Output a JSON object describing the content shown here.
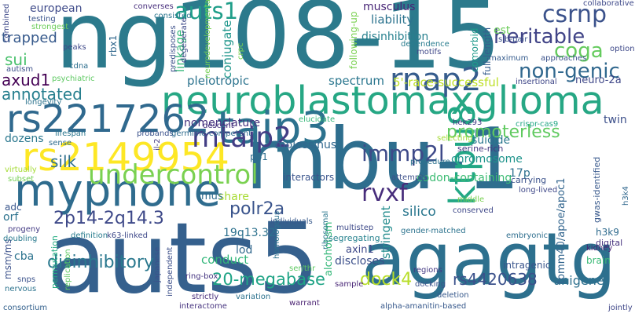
{
  "words": [
    {
      "text": "ng108-15",
      "color": "#2c7a8c",
      "weight": 140
    },
    {
      "text": "mbu-1",
      "color": "#2e6e8e",
      "weight": 130
    },
    {
      "text": "auts5",
      "color": "#35608d",
      "weight": 120
    },
    {
      "text": "agagtg",
      "color": "#2d708e",
      "weight": 110
    },
    {
      "text": "neuroblastomaxglioma",
      "color": "#26a784",
      "weight": 60
    },
    {
      "text": "rs2217262",
      "color": "#30698e",
      "weight": 58
    },
    {
      "text": "rs2149954",
      "color": "#fde725",
      "weight": 56
    },
    {
      "text": "myphone",
      "color": "#2f6c8e",
      "weight": 56
    },
    {
      "text": "taip3",
      "color": "#2c728e",
      "weight": 55
    },
    {
      "text": "ktpu8",
      "color": "#22a785",
      "weight": 50
    },
    {
      "text": "undercontrol",
      "color": "#7ad151",
      "weight": 40
    },
    {
      "text": "mtaip2",
      "color": "#433e85",
      "weight": 38
    },
    {
      "text": "rnap2",
      "color": "#365c8d",
      "weight": 40
    },
    {
      "text": "csrnp",
      "color": "#3b528b",
      "weight": 33
    },
    {
      "text": "auts1",
      "color": "#1f9e89",
      "weight": 30
    },
    {
      "text": "heritable",
      "color": "#414487",
      "weight": 28
    },
    {
      "text": "coga",
      "color": "#65cb5e",
      "weight": 28
    },
    {
      "text": "non-genic",
      "color": "#31688e",
      "weight": 28
    },
    {
      "text": "immp2l",
      "color": "#3e4a89",
      "weight": 30
    },
    {
      "text": "promoterless",
      "color": "#60ca60",
      "weight": 22
    },
    {
      "text": "rvxf",
      "color": "#472d7b",
      "weight": 30
    },
    {
      "text": "2p14-2q14.3",
      "color": "#3e4989",
      "weight": 24
    },
    {
      "text": "disinhibitory",
      "color": "#2a788e",
      "weight": 24
    },
    {
      "text": "20-megabase",
      "color": "#20a486",
      "weight": 22
    },
    {
      "text": "dock4",
      "color": "#b8de29",
      "weight": 22
    },
    {
      "text": "rs4420638",
      "color": "#3b518b",
      "weight": 20
    },
    {
      "text": "polr2a",
      "color": "#3a548c",
      "weight": 20
    },
    {
      "text": "silk",
      "color": "#2e6f8e",
      "weight": 22
    },
    {
      "text": "axud1",
      "color": "#440154",
      "weight": 20
    },
    {
      "text": "annotated",
      "color": "#277f8e",
      "weight": 20
    },
    {
      "text": "sui",
      "color": "#4ac16d",
      "weight": 20
    },
    {
      "text": "trapped",
      "color": "#375a8c",
      "weight": 18
    },
    {
      "text": "european",
      "color": "#3e4a89",
      "weight": 16
    },
    {
      "text": "musculus",
      "color": "#482677",
      "weight": 14
    },
    {
      "text": "liability",
      "color": "#2c738e",
      "weight": 16
    },
    {
      "text": "disinhibition",
      "color": "#27808e",
      "weight": 14
    },
    {
      "text": "conjugate",
      "color": "#1f968b",
      "weight": 16
    },
    {
      "text": "linkage",
      "color": "#35b779",
      "weight": 16
    },
    {
      "text": "pleiotropic",
      "color": "#2c738e",
      "weight": 16
    },
    {
      "text": "spectrum",
      "color": "#2a768e",
      "weight": 16
    },
    {
      "text": "5'-race-successful",
      "color": "#bddf26",
      "weight": 16
    },
    {
      "text": "neuro-2a",
      "color": "#3f4788",
      "weight": 14
    },
    {
      "text": "nomenclature",
      "color": "#46337f",
      "weight": 14
    },
    {
      "text": "twin",
      "color": "#3c4f8a",
      "weight": 14
    },
    {
      "text": "suicide",
      "color": "#2a788e",
      "weight": 14
    },
    {
      "text": "dozens",
      "color": "#2a778e",
      "weight": 14
    },
    {
      "text": "molossinus",
      "color": "#31688e",
      "weight": 14
    },
    {
      "text": "chromosome",
      "color": "#1f948c",
      "weight": 14
    },
    {
      "text": "serine-rich",
      "color": "#453781",
      "weight": 11
    },
    {
      "text": "codon-containing",
      "color": "#3dbc74",
      "weight": 14
    },
    {
      "text": "17p",
      "color": "#2d708e",
      "weight": 14
    },
    {
      "text": "long-lived",
      "color": "#3f4889",
      "weight": 10
    },
    {
      "text": "stringent",
      "color": "#228c8d",
      "weight": 16
    },
    {
      "text": "silico",
      "color": "#2a778e",
      "weight": 18
    },
    {
      "text": "share",
      "color": "#a8db34",
      "weight": 14
    },
    {
      "text": "mus",
      "color": "#2f6b8e",
      "weight": 14
    },
    {
      "text": "19q13.32",
      "color": "#2d718e",
      "weight": 14
    },
    {
      "text": "lod",
      "color": "#31688e",
      "weight": 14
    },
    {
      "text": "conduct",
      "color": "#32b67a",
      "weight": 16
    },
    {
      "text": "axin1",
      "color": "#3e4989",
      "weight": 14
    },
    {
      "text": "alcoholism",
      "color": "#35b779",
      "weight": 14
    },
    {
      "text": "discloses",
      "color": "#3c4f8a",
      "weight": 14
    },
    {
      "text": "unigene",
      "color": "#2d708e",
      "weight": 16
    },
    {
      "text": "tomm40/apoe/apoc1",
      "color": "#32658e",
      "weight": 14
    },
    {
      "text": "h3k9",
      "color": "#2f6b8e",
      "weight": 12
    },
    {
      "text": "kidney",
      "color": "#482173",
      "weight": 10
    },
    {
      "text": "brain",
      "color": "#3aba76",
      "weight": 12
    },
    {
      "text": "intragenic",
      "color": "#39558c",
      "weight": 12
    },
    {
      "text": "regions",
      "color": "#443983",
      "weight": 10
    },
    {
      "text": "gwas-identified",
      "color": "#38598c",
      "weight": 12
    },
    {
      "text": "digital",
      "color": "#46327e",
      "weight": 12
    },
    {
      "text": "embryonic",
      "color": "#2e6e8e",
      "weight": 10
    },
    {
      "text": "gender-matched",
      "color": "#2c738e",
      "weight": 10
    },
    {
      "text": "segregating",
      "color": "#26828e",
      "weight": 12
    },
    {
      "text": "multistep",
      "color": "#3e4a89",
      "weight": 10
    },
    {
      "text": "individuals",
      "color": "#38598c",
      "weight": 10
    },
    {
      "text": "ring-box",
      "color": "#453581",
      "weight": 10
    },
    {
      "text": "alpha-amanitin-based",
      "color": "#38598c",
      "weight": 10
    },
    {
      "text": "deletion",
      "color": "#37598c",
      "weight": 10
    },
    {
      "text": "sample",
      "color": "#482576",
      "weight": 10
    },
    {
      "text": "k63-linked",
      "color": "#3e4989",
      "weight": 10
    },
    {
      "text": "definition",
      "color": "#287c8e",
      "weight": 10
    },
    {
      "text": "interactome",
      "color": "#46337f",
      "weight": 10
    },
    {
      "text": "strictly",
      "color": "#472d7b",
      "weight": 10
    },
    {
      "text": "warrant",
      "color": "#481f70",
      "weight": 10
    },
    {
      "text": "variation",
      "color": "#2c728e",
      "weight": 10
    },
    {
      "text": "consortium",
      "color": "#34618d",
      "weight": 10
    },
    {
      "text": "nervous",
      "color": "#2c738e",
      "weight": 10
    },
    {
      "text": "snps",
      "color": "#3b528b",
      "weight": 10
    },
    {
      "text": "doubling",
      "color": "#297a8e",
      "weight": 10
    },
    {
      "text": "progeny",
      "color": "#443b84",
      "weight": 10
    },
    {
      "text": "msm/ms",
      "color": "#3b518b",
      "weight": 12
    },
    {
      "text": "cba",
      "color": "#2c738e",
      "weight": 14
    },
    {
      "text": "orf",
      "color": "#2c728e",
      "weight": 14
    },
    {
      "text": "adc",
      "color": "#39568c",
      "weight": 12
    },
    {
      "text": "permutation",
      "color": "#25ac82",
      "weight": 12
    },
    {
      "text": "replication",
      "color": "#5ec962",
      "weight": 10
    },
    {
      "text": "japanese",
      "color": "#3c508b",
      "weight": 10
    },
    {
      "text": "independent",
      "color": "#3c4f8a",
      "weight": 10
    },
    {
      "text": "lifespan",
      "color": "#2a768e",
      "weight": 10
    },
    {
      "text": "probands",
      "color": "#3b528b",
      "weight": 10
    },
    {
      "text": "germline-competent",
      "color": "#2f6c8e",
      "weight": 10
    },
    {
      "text": "descent",
      "color": "#46337f",
      "weight": 10
    },
    {
      "text": "interactors",
      "color": "#3a548c",
      "weight": 12
    },
    {
      "text": "homologous",
      "color": "#2c728e",
      "weight": 10
    },
    {
      "text": "ribosomal",
      "color": "#2a778e",
      "weight": 10
    },
    {
      "text": "middle",
      "color": "#7ad151",
      "weight": 10
    },
    {
      "text": "conserved",
      "color": "#3f4889",
      "weight": 10
    },
    {
      "text": "carrying",
      "color": "#3b528b",
      "weight": 12
    },
    {
      "text": "selecting",
      "color": "#a5db36",
      "weight": 10
    },
    {
      "text": "attempts",
      "color": "#3c4f8a",
      "weight": 10
    },
    {
      "text": "crispr-cas9",
      "color": "#21a685",
      "weight": 10
    },
    {
      "text": "hek293",
      "color": "#443a83",
      "weight": 10
    },
    {
      "text": "elucidate",
      "color": "#35b779",
      "weight": 10
    },
    {
      "text": "pp1",
      "color": "#2e6d8e",
      "weight": 12
    },
    {
      "text": "sense",
      "color": "#2f6c8e",
      "weight": 10
    },
    {
      "text": "rbx1",
      "color": "#31688e",
      "weight": 12
    },
    {
      "text": "predisposes",
      "color": "#3c4f8a",
      "weight": 10
    },
    {
      "text": "degenerate",
      "color": "#3e4989",
      "weight": 10
    },
    {
      "text": "neurodevelopmental",
      "color": "#75d054",
      "weight": 10
    },
    {
      "text": "comorbid",
      "color": "#1f9a8a",
      "weight": 12
    },
    {
      "text": "full-length",
      "color": "#365d8d",
      "weight": 12
    },
    {
      "text": "est",
      "color": "#6ccd5a",
      "weight": 14
    },
    {
      "text": "sib-pair",
      "color": "#3b518b",
      "weight": 10
    },
    {
      "text": "maximum",
      "color": "#365c8d",
      "weight": 10
    },
    {
      "text": "approaches",
      "color": "#3b528b",
      "weight": 10
    },
    {
      "text": "insertional",
      "color": "#3f4788",
      "weight": 10
    },
    {
      "text": "collaborative",
      "color": "#3e4989",
      "weight": 10
    },
    {
      "text": "following-up",
      "color": "#7ad151",
      "weight": 12
    },
    {
      "text": "dependence",
      "color": "#287c8e",
      "weight": 10
    },
    {
      "text": "motifs",
      "color": "#3f4788",
      "weight": 10
    },
    {
      "text": "consisted",
      "color": "#2a768e",
      "weight": 10
    },
    {
      "text": "converses",
      "color": "#472e7c",
      "weight": 10
    },
    {
      "text": "testing",
      "color": "#3a548c",
      "weight": 10
    },
    {
      "text": "strongest",
      "color": "#6ccd5a",
      "weight": 10
    },
    {
      "text": "peaks",
      "color": "#3e4989",
      "weight": 10
    },
    {
      "text": "cdna",
      "color": "#2e6f8e",
      "weight": 10
    },
    {
      "text": "autism",
      "color": "#3c4f8a",
      "weight": 10
    },
    {
      "text": "psychiatric",
      "color": "#5ec962",
      "weight": 10
    },
    {
      "text": "longevity",
      "color": "#2c738e",
      "weight": 10
    },
    {
      "text": "combined",
      "color": "#3e4989",
      "weight": 10
    },
    {
      "text": "procedure",
      "color": "#2c728e",
      "weight": 10
    },
    {
      "text": "ser/thr",
      "color": "#5ec962",
      "weight": 10
    },
    {
      "text": "docking",
      "color": "#3b528b",
      "weight": 10
    },
    {
      "text": "jointly",
      "color": "#3f4788",
      "weight": 10
    },
    {
      "text": "h3k4",
      "color": "#31688e",
      "weight": 10
    },
    {
      "text": "options",
      "color": "#3e4989",
      "weight": 10
    },
    {
      "text": "crpc",
      "color": "#7ad151",
      "weight": 10
    },
    {
      "text": "virtually",
      "color": "#a5db36",
      "weight": 10
    },
    {
      "text": "il-2",
      "color": "#443a83",
      "weight": 10
    },
    {
      "text": "subset",
      "color": "#75d054",
      "weight": 10
    }
  ]
}
